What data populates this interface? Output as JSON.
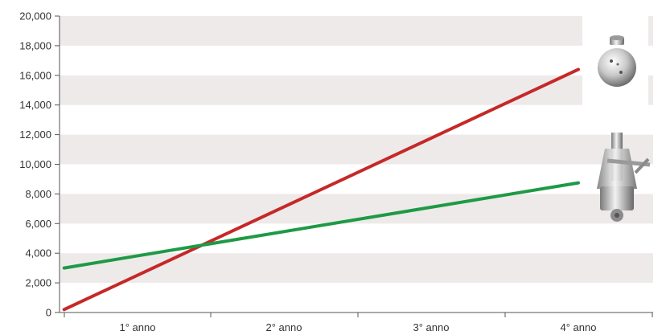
{
  "chart_data": {
    "type": "line",
    "title": "",
    "xlabel": "",
    "ylabel": "",
    "x_categories": [
      "1° anno",
      "2° anno",
      "3° anno",
      "4° anno"
    ],
    "ylim": [
      0,
      20000
    ],
    "y_ticks": [
      0,
      2000,
      4000,
      6000,
      8000,
      10000,
      12000,
      14000,
      16000,
      18000,
      20000
    ],
    "y_tick_labels": [
      "0",
      "2,000",
      "4,000",
      "6,000",
      "8,000",
      "10,000",
      "12,000",
      "14,000",
      "16,000",
      "18,000",
      "20,000"
    ],
    "grid": "alternating horizontal bands",
    "band_color": "#eeeaea",
    "series": [
      {
        "color": "#c62828",
        "points": [
          {
            "x": 0.5,
            "y": 200
          },
          {
            "x": 4.0,
            "y": 16400
          }
        ]
      },
      {
        "color": "#1e9a45",
        "points": [
          {
            "x": 0.5,
            "y": 3000
          },
          {
            "x": 4.0,
            "y": 8750
          }
        ]
      }
    ],
    "images": [
      "sphere-nozzle-icon",
      "rotary-jet-head-icon"
    ]
  }
}
